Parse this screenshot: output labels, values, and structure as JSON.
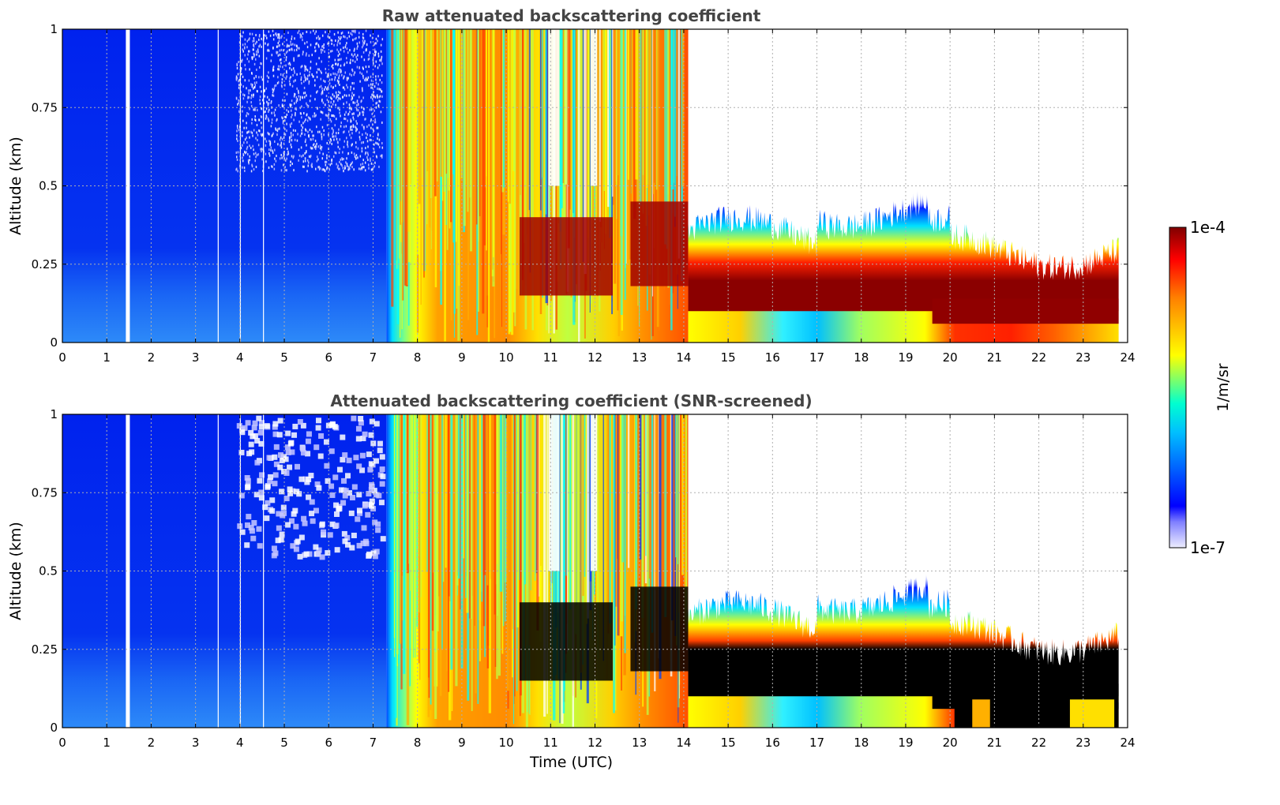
{
  "chart_data": [
    {
      "type": "heatmap",
      "title": "Raw attenuated backscattering coefficient",
      "xlabel": "",
      "ylabel": "Altitude (km)",
      "xlim": [
        0,
        24
      ],
      "ylim": [
        0,
        1
      ],
      "x_ticks": [
        "0",
        "1",
        "2",
        "3",
        "4",
        "5",
        "6",
        "7",
        "8",
        "9",
        "10",
        "11",
        "12",
        "13",
        "14",
        "15",
        "16",
        "17",
        "18",
        "19",
        "20",
        "21",
        "22",
        "23",
        "24"
      ],
      "y_ticks": [
        "0",
        "0.25",
        "0.5",
        "0.75",
        "1"
      ],
      "grid": true,
      "colormap": "jet",
      "color_scale": "log",
      "clim": [
        "1e-7",
        "1e-4"
      ],
      "features": {
        "night_clear_air_until_hour": 7.3,
        "gap_hours": [
          1.45,
          1.5
        ],
        "daytime_high_values_hours": [
          7.3,
          14.1
        ],
        "boundary_layer_top_km_after_14h": [
          0.45,
          0.3,
          0.25
        ],
        "boundary_layer_peak_band_km": [
          0.1,
          0.3
        ],
        "data_ends_hour": 23.8
      }
    },
    {
      "type": "heatmap",
      "title": "Attenuated backscattering coefficient (SNR-screened)",
      "xlabel": "Time (UTC)",
      "ylabel": "Altitude (km)",
      "xlim": [
        0,
        24
      ],
      "ylim": [
        0,
        1
      ],
      "x_ticks": [
        "0",
        "1",
        "2",
        "3",
        "4",
        "5",
        "6",
        "7",
        "8",
        "9",
        "10",
        "11",
        "12",
        "13",
        "14",
        "15",
        "16",
        "17",
        "18",
        "19",
        "20",
        "21",
        "22",
        "23",
        "24"
      ],
      "y_ticks": [
        "0",
        "0.25",
        "0.5",
        "0.75",
        "1"
      ],
      "grid": true,
      "colormap": "jet",
      "color_scale": "log",
      "clim": [
        "1e-7",
        "1e-4"
      ],
      "features": {
        "screened_saturated_regions": "black",
        "data_ends_hour": 23.8
      }
    }
  ],
  "colorbar": {
    "label": "1/m/sr",
    "max_label": "1e-4",
    "min_label": "1e-7"
  }
}
